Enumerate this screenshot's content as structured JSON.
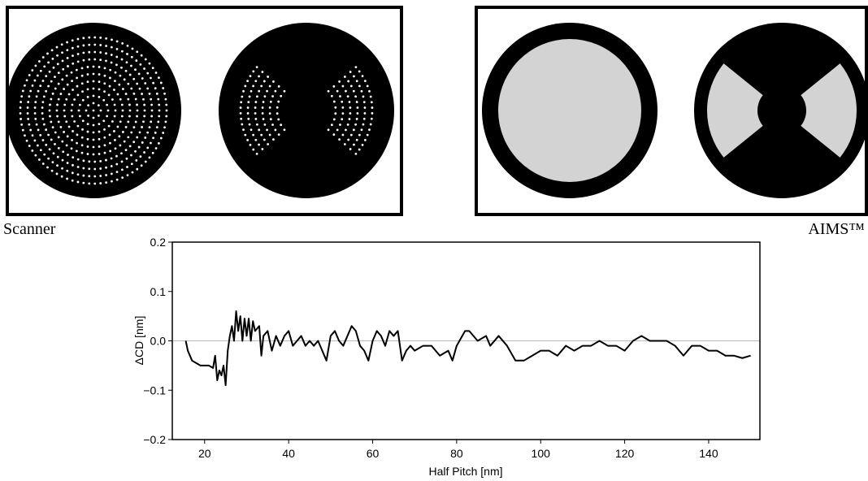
{
  "panel_labels": {
    "left": "Scanner",
    "right": "AIMS™"
  },
  "chart_data": {
    "type": "line",
    "x_label": "Half Pitch [nm]",
    "y_label": "ΔCD [nm]",
    "xlim": [
      12.3,
      152.2
    ],
    "ylim": [
      -0.2,
      0.2
    ],
    "xticks": [
      20,
      40,
      60,
      80,
      100,
      120,
      140
    ],
    "yticks": [
      {
        "value": 0.2,
        "label": "0.2"
      },
      {
        "value": 0.1,
        "label": "0.1"
      },
      {
        "value": 0,
        "label": "0.0"
      },
      {
        "value": -0.1,
        "label": "−0.1"
      },
      {
        "value": -0.2,
        "label": "−0.2"
      }
    ],
    "zero_line": true,
    "series": [
      {
        "color": "#000000",
        "x": [
          15.5,
          16,
          17,
          18,
          19,
          20,
          21,
          22,
          22.5,
          23,
          23.5,
          24,
          24.5,
          25,
          25.5,
          26,
          26.5,
          27,
          27.5,
          28,
          28.5,
          29,
          29.5,
          30,
          30.5,
          31,
          31.5,
          32,
          33,
          33.5,
          34,
          35,
          36,
          37,
          38,
          39,
          40,
          41,
          42,
          43,
          44,
          45,
          46,
          47,
          48,
          49,
          50,
          51,
          52,
          53,
          54,
          55,
          56,
          57,
          58,
          59,
          60,
          61,
          62,
          63,
          64,
          65,
          66,
          67,
          68,
          69,
          70,
          72,
          74,
          76,
          78,
          79,
          80,
          82,
          83,
          85,
          87,
          88,
          90,
          92,
          94,
          96,
          98,
          100,
          102,
          104,
          106,
          108,
          110,
          112,
          114,
          116,
          118,
          120,
          122,
          124,
          126,
          128,
          130,
          132,
          134,
          136,
          138,
          140,
          142,
          144,
          146,
          148,
          150
        ],
        "values": [
          0.0,
          -0.02,
          -0.04,
          -0.045,
          -0.05,
          -0.05,
          -0.05,
          -0.055,
          -0.03,
          -0.08,
          -0.06,
          -0.07,
          -0.05,
          -0.09,
          -0.02,
          0.01,
          0.03,
          0.0,
          0.06,
          0.02,
          0.05,
          0.0,
          0.045,
          0.01,
          0.045,
          0.0,
          0.04,
          0.02,
          0.03,
          -0.03,
          0.01,
          0.02,
          -0.02,
          0.01,
          -0.01,
          0.01,
          0.02,
          -0.01,
          0.0,
          0.01,
          -0.01,
          0.0,
          -0.01,
          0.0,
          -0.02,
          -0.04,
          0.01,
          0.02,
          0.0,
          -0.01,
          0.01,
          0.03,
          0.02,
          -0.01,
          -0.02,
          -0.04,
          0.0,
          0.02,
          0.01,
          -0.01,
          0.02,
          0.01,
          0.02,
          -0.04,
          -0.02,
          -0.01,
          -0.02,
          -0.01,
          -0.01,
          -0.03,
          -0.02,
          -0.04,
          -0.01,
          0.02,
          0.02,
          0.0,
          0.01,
          -0.01,
          0.01,
          -0.01,
          -0.04,
          -0.04,
          -0.03,
          -0.02,
          -0.02,
          -0.03,
          -0.01,
          -0.02,
          -0.01,
          -0.01,
          0.0,
          -0.01,
          -0.01,
          -0.02,
          0.0,
          0.01,
          0.0,
          0.0,
          0.0,
          -0.01,
          -0.03,
          -0.01,
          -0.01,
          -0.02,
          -0.02,
          -0.03,
          -0.03,
          -0.035,
          -0.03
        ]
      }
    ]
  }
}
